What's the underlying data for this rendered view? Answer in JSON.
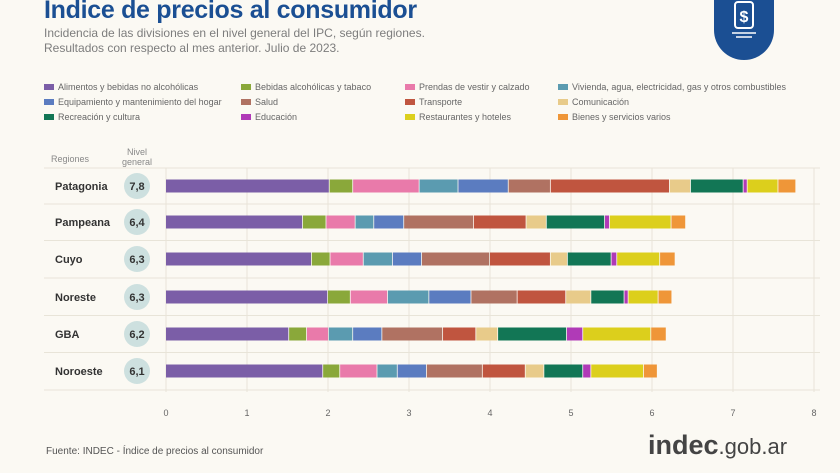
{
  "header": {
    "title": "Indice de precios al consumidor",
    "subtitle_1": "Incidencia de las divisiones en el nivel general del IPC, según regiones.",
    "subtitle_2": "Resultados con respecto al mes anterior. Julio de 2023.",
    "logo_icon": "dollar-tag-icon"
  },
  "columns": {
    "regions": "Regiones",
    "general": "Nivel general"
  },
  "footer": {
    "source": "Fuente: INDEC - Índice de precios al consumidor",
    "brand_bold": "indec",
    "brand_rest": ".gob.ar"
  },
  "chart_data": {
    "type": "bar",
    "orientation": "horizontal",
    "stacked": true,
    "xlim": [
      0,
      8
    ],
    "xticks": [
      "0",
      "1",
      "2",
      "3",
      "4",
      "5",
      "6",
      "7",
      "8"
    ],
    "grid": true,
    "legend": "top",
    "categories": [
      "Patagonia",
      "Pampeana",
      "Cuyo",
      "Noreste",
      "GBA",
      "Noroeste"
    ],
    "nivel_general": [
      "7,8",
      "6,4",
      "6,3",
      "6,3",
      "6,2",
      "6,1"
    ],
    "series": [
      {
        "name": "Alimentos y bebidas no alcohólicas",
        "color": "#7b5ea7",
        "values": [
          2.02,
          1.69,
          1.8,
          2.0,
          1.52,
          1.94
        ]
      },
      {
        "name": "Bebidas alcohólicas y tabaco",
        "color": "#8aa83a",
        "values": [
          0.29,
          0.29,
          0.23,
          0.28,
          0.22,
          0.21
        ]
      },
      {
        "name": "Prendas de vestir y calzado",
        "color": "#e97aaa",
        "values": [
          0.82,
          0.36,
          0.41,
          0.46,
          0.27,
          0.46
        ]
      },
      {
        "name": "Vivienda, agua, electricidad, gas y otros combustibles",
        "color": "#5b9bb0",
        "values": [
          0.48,
          0.23,
          0.36,
          0.51,
          0.3,
          0.25
        ]
      },
      {
        "name": "Equipamiento y mantenimiento del hogar",
        "color": "#5b7cc0",
        "values": [
          0.62,
          0.37,
          0.36,
          0.52,
          0.36,
          0.36
        ]
      },
      {
        "name": "Salud",
        "color": "#b07262",
        "values": [
          0.52,
          0.86,
          0.84,
          0.57,
          0.75,
          0.69
        ]
      },
      {
        "name": "Transporte",
        "color": "#c0553f",
        "values": [
          1.47,
          0.65,
          0.75,
          0.6,
          0.41,
          0.53
        ]
      },
      {
        "name": "Comunicación",
        "color": "#e8cb8a",
        "values": [
          0.26,
          0.25,
          0.21,
          0.31,
          0.27,
          0.23
        ]
      },
      {
        "name": "Recreación y cultura",
        "color": "#127655",
        "values": [
          0.65,
          0.72,
          0.54,
          0.41,
          0.85,
          0.48
        ]
      },
      {
        "name": "Educación",
        "color": "#b03ab7",
        "values": [
          0.05,
          0.06,
          0.07,
          0.05,
          0.2,
          0.1
        ]
      },
      {
        "name": "Restaurantes y hoteles",
        "color": "#dccf1c",
        "values": [
          0.38,
          0.76,
          0.53,
          0.37,
          0.84,
          0.65
        ]
      },
      {
        "name": "Bienes y servicios varios",
        "color": "#ef9638",
        "values": [
          0.22,
          0.18,
          0.19,
          0.17,
          0.19,
          0.17
        ]
      }
    ]
  }
}
